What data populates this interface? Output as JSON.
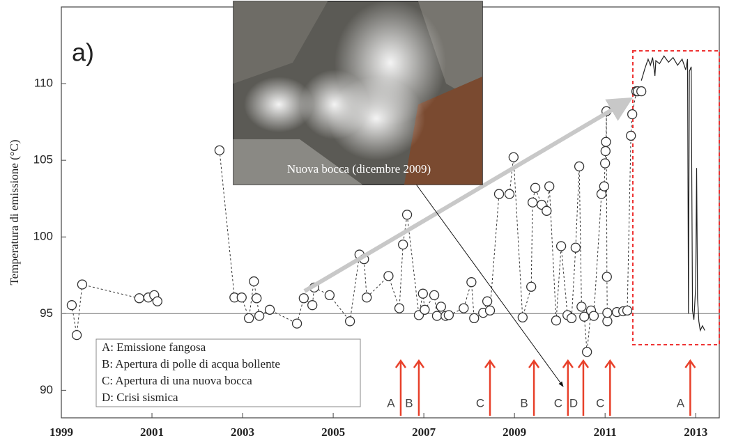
{
  "chart_data": {
    "type": "line",
    "label": "a)",
    "y_label": "Temperatura di emissione (°C)",
    "photo_caption": "Nuova bocca (dicembre 2009)",
    "legend_text": [
      "A: Emissione fangosa",
      "B: Apertura di polle di acqua bollente",
      "C: Apertura di una nuova bocca",
      "D: Crisi sismica"
    ],
    "xlim": [
      1999,
      2013.52
    ],
    "ylim": [
      88.2,
      115
    ],
    "xticks": [
      1999,
      2001,
      2003,
      2005,
      2007,
      2009,
      2011,
      2013
    ],
    "yticks": [
      90,
      95,
      100,
      105,
      110
    ],
    "ref_line": 95,
    "series": [
      {
        "color": "#333333",
        "markers": true,
        "line_style": "dashed",
        "x": [
          1999.23,
          1999.34,
          1999.46,
          2000.72,
          2000.92,
          2001.05,
          2001.12,
          null,
          2002.49,
          2002.82,
          2002.98,
          2003.14,
          2003.25,
          2003.31,
          2003.37,
          2003.6,
          2004.2,
          2004.35,
          2004.54,
          2004.58,
          2004.92,
          2005.37,
          2005.58,
          2005.68,
          2005.74,
          2006.22,
          2006.46,
          2006.54,
          2006.63,
          2006.89,
          2006.98,
          2007.02,
          2007.23,
          2007.29,
          2007.38,
          2007.48,
          2007.55,
          2007.88,
          2008.05,
          2008.11,
          2008.31,
          2008.4,
          2008.46,
          2008.66,
          2008.89,
          2008.98,
          2009.18,
          2009.37,
          2009.4,
          2009.46,
          2009.6,
          2009.71,
          2009.77,
          2009.92,
          2010.03,
          2010.17,
          2010.26,
          2010.35,
          2010.43,
          2010.48,
          2010.54,
          2010.6,
          2010.69,
          2010.75,
          2010.92,
          2010.98,
          2011.0,
          2011.01,
          2011.02,
          2011.03,
          2011.04,
          2011.05,
          2011.05,
          2011.26,
          2011.4,
          2011.49,
          2011.57,
          2011.6,
          2011.69,
          2011.72,
          2011.8
        ],
        "values": [
          95.55,
          93.6,
          96.9,
          96.0,
          96.05,
          96.2,
          95.8,
          null,
          105.65,
          96.05,
          96.05,
          94.7,
          97.1,
          96.0,
          94.85,
          95.25,
          94.35,
          96.0,
          95.55,
          96.7,
          96.2,
          94.5,
          98.85,
          98.55,
          96.05,
          97.45,
          95.35,
          99.5,
          101.45,
          94.9,
          96.3,
          95.25,
          96.2,
          94.85,
          95.45,
          94.85,
          94.9,
          95.35,
          97.05,
          94.7,
          95.05,
          95.8,
          95.2,
          102.8,
          102.8,
          105.2,
          94.75,
          96.75,
          102.25,
          103.2,
          102.1,
          101.7,
          103.3,
          94.55,
          99.4,
          94.9,
          94.7,
          99.3,
          104.6,
          95.45,
          94.8,
          92.5,
          95.2,
          94.85,
          102.8,
          103.3,
          104.8,
          105.6,
          106.2,
          108.2,
          97.4,
          94.5,
          95.05,
          95.1,
          95.15,
          95.2,
          106.6,
          108.0,
          109.5,
          109.5,
          109.5
        ]
      },
      {
        "color": "#222222",
        "markers": false,
        "line_style": "solid",
        "x": [
          2011.8,
          2011.88,
          2011.95,
          2012.0,
          2012.05,
          2012.1,
          2012.12,
          2012.2,
          2012.3,
          2012.4,
          2012.5,
          2012.6,
          2012.7,
          2012.78,
          2012.82,
          2012.84,
          2012.86,
          2012.9,
          2012.93,
          2012.96,
          2013.0,
          2013.02,
          2013.04,
          2013.07,
          2013.1,
          2013.15,
          2013.2
        ],
        "values": [
          110.2,
          111.0,
          111.6,
          111.2,
          111.7,
          110.5,
          111.5,
          111.3,
          111.8,
          111.4,
          111.7,
          111.2,
          111.6,
          110.9,
          111.6,
          95.0,
          110.8,
          111.1,
          95.2,
          94.6,
          96.8,
          104.5,
          96.0,
          94.5,
          93.9,
          94.2,
          93.9
        ]
      }
    ],
    "events": [
      {
        "x": 2006.49,
        "label": "A"
      },
      {
        "x": 2006.89,
        "label": "B"
      },
      {
        "x": 2008.46,
        "label": "C"
      },
      {
        "x": 2009.43,
        "label": "B"
      },
      {
        "x": 2010.18,
        "label": "C"
      },
      {
        "x": 2010.52,
        "label": "D"
      },
      {
        "x": 2011.11,
        "label": "C"
      },
      {
        "x": 2012.88,
        "label": "A"
      }
    ],
    "event_color": "#e8402a"
  }
}
